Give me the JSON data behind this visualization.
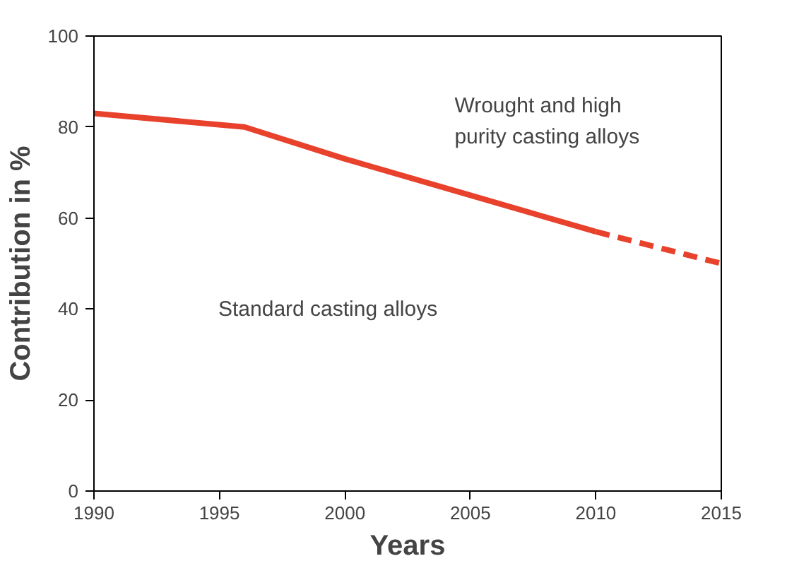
{
  "chart_data": {
    "type": "line",
    "xlabel": "Years",
    "ylabel": "Contribution in %",
    "xlim": [
      1990,
      2015
    ],
    "xticks": [
      1990,
      1995,
      2000,
      2005,
      2010,
      2015
    ],
    "ylim": [
      0,
      100
    ],
    "yticks": [
      0,
      20,
      40,
      60,
      80,
      100
    ],
    "grid": false,
    "marker": "none",
    "series": [
      {
        "color": "#e8412c",
        "line_style": "solid",
        "x": [
          1990,
          1996,
          2000,
          2005,
          2010
        ],
        "values": [
          83,
          80,
          73,
          65,
          57
        ]
      },
      {
        "color": "#e8412c",
        "line_style": "dashed",
        "x": [
          2010,
          2015
        ],
        "values": [
          57,
          50
        ]
      }
    ],
    "annotations": [
      "Wrought and high purity casting alloys",
      "Standard casting alloys"
    ]
  }
}
